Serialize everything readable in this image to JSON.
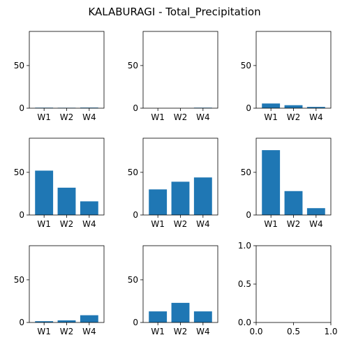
{
  "chart_data": {
    "title": "KALABURAGI - Total_Precipitation",
    "type": "bar",
    "bar_color": "#1f77b4",
    "ylim": [
      0,
      90
    ],
    "y_ticks": [
      0,
      50
    ],
    "categories": [
      "W1",
      "W2",
      "W4"
    ],
    "panels": [
      {
        "values": [
          0.6,
          0.5,
          0.7
        ]
      },
      {
        "values": [
          0.0,
          0.0,
          0.6
        ]
      },
      {
        "values": [
          5.5,
          3.5,
          1.5
        ]
      },
      {
        "values": [
          52,
          32,
          16
        ]
      },
      {
        "values": [
          30,
          39,
          44
        ]
      },
      {
        "values": [
          76,
          28,
          8
        ]
      },
      {
        "values": [
          1.5,
          2.5,
          8.5
        ]
      },
      {
        "values": [
          13,
          23,
          13
        ]
      },
      {
        "empty": true,
        "xlim": [
          0,
          1
        ],
        "ylim": [
          0,
          1
        ],
        "x_ticks": [
          "0.0",
          "0.5",
          "1.0"
        ],
        "y_ticks": [
          "0.0",
          "0.5",
          "1.0"
        ]
      }
    ]
  }
}
